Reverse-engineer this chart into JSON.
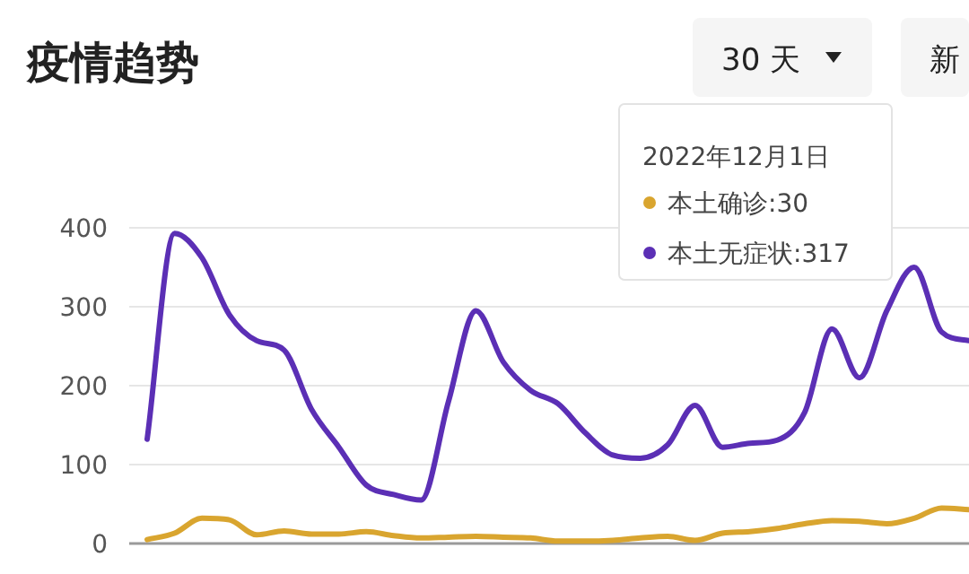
{
  "chart_data": {
    "type": "line",
    "title": "疫情趋势",
    "annotations": [
      "2022年12月1日",
      "本土确诊:30",
      "本土无症状:317",
      "30 天",
      "新"
    ],
    "categories": [
      null,
      null,
      null,
      null,
      null,
      null,
      null,
      null,
      null,
      null,
      null,
      null,
      null,
      null,
      null,
      null,
      null,
      null,
      null,
      null,
      null,
      null,
      null,
      null,
      null,
      null,
      null,
      null,
      null,
      null,
      null
    ],
    "series": [
      {
        "color": "#d9a52f",
        "values": [
          5,
          13,
          32,
          30,
          11,
          16,
          12,
          12,
          15,
          10,
          7,
          8,
          9,
          8,
          7,
          3,
          3,
          4,
          7,
          9,
          4,
          13,
          15,
          19,
          25,
          29,
          28,
          25,
          32,
          45,
          43
        ]
      },
      {
        "color": "#5b2fb5",
        "values": [
          132,
          393,
          362,
          290,
          257,
          245,
          170,
          122,
          74,
          62,
          55,
          180,
          295,
          230,
          194,
          177,
          140,
          112,
          108,
          125,
          175,
          122,
          127,
          131,
          166,
          272,
          210,
          295,
          350,
          268,
          257
        ]
      }
    ],
    "ylim": [
      0,
      400
    ],
    "yticks": [
      0,
      100,
      200,
      300,
      400
    ],
    "grid": "y",
    "tick_labels": "y"
  }
}
